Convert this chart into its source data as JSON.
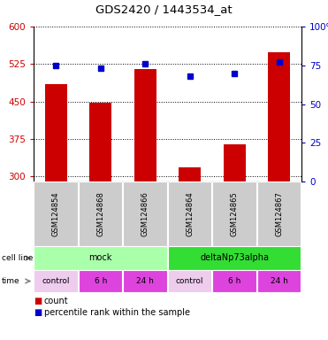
{
  "title": "GDS2420 / 1443534_at",
  "samples": [
    "GSM124854",
    "GSM124868",
    "GSM124866",
    "GSM124864",
    "GSM124865",
    "GSM124867"
  ],
  "counts": [
    485,
    447,
    515,
    318,
    365,
    548
  ],
  "percentile_ranks": [
    75,
    73,
    76,
    68,
    70,
    77
  ],
  "ylim_left": [
    290,
    600
  ],
  "ylim_right": [
    0,
    100
  ],
  "yticks_left": [
    300,
    375,
    450,
    525,
    600
  ],
  "yticks_right": [
    0,
    25,
    50,
    75,
    100
  ],
  "bar_color": "#cc0000",
  "dot_color": "#0000cc",
  "bar_bottom": 290,
  "cell_line_labels": [
    "mock",
    "deltaNp73alpha"
  ],
  "cell_line_spans": [
    [
      0,
      3
    ],
    [
      3,
      6
    ]
  ],
  "cell_line_colors": [
    "#aaffaa",
    "#33dd33"
  ],
  "time_labels": [
    "control",
    "6 h",
    "24 h",
    "control",
    "6 h",
    "24 h"
  ],
  "time_colors_list": [
    "#eeccee",
    "#dd44dd",
    "#dd44dd",
    "#eeccee",
    "#dd44dd",
    "#dd44dd"
  ],
  "sample_bg_color": "#cccccc",
  "left_tick_color": "#cc0000",
  "right_tick_color": "#0000cc",
  "legend_count_color": "#cc0000",
  "legend_pct_color": "#0000cc",
  "label_color": "#888888",
  "arrow_color": "#888888"
}
